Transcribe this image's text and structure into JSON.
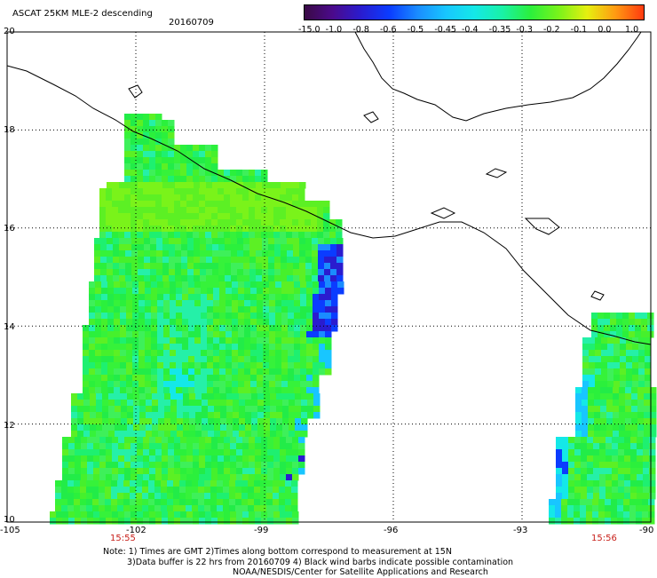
{
  "header": {
    "title": "ASCAT 25KM MLE-2 descending",
    "date": "20160709"
  },
  "colorbar": {
    "labels": [
      "-15.0",
      "-1.0",
      "-0.8",
      "-0.6",
      "-0.5",
      "-0.45",
      "-0.4",
      "-0.35",
      "-0.3",
      "-0.2",
      "-0.1",
      "0.0",
      "1.0"
    ],
    "colors": [
      "#3a0a45",
      "#4b0a8c",
      "#2a1ccf",
      "#0b3cff",
      "#1a8cff",
      "#18c6ff",
      "#14e8e8",
      "#19f2a6",
      "#2bf03c",
      "#7af31a",
      "#e6f010",
      "#ff9a12",
      "#ff3a10"
    ]
  },
  "axes": {
    "lat_labels": [
      "20",
      "18",
      "16",
      "14",
      "12",
      "10"
    ],
    "lon_labels": [
      "-105",
      "-102",
      "-99",
      "-96",
      "-93",
      "-90"
    ],
    "lat_range": [
      10,
      20
    ],
    "lon_range": [
      -105,
      -90
    ]
  },
  "swaths": {
    "left_time": "15:55",
    "right_time": "15:56"
  },
  "notes": {
    "line1": "Note: 1) Times are GMT 2)Times along bottom correspond to measurement at 15N",
    "line2": "3)Data buffer is 22 hrs from 20160709 4) Black wind barbs indicate possible contamination",
    "line3": "NOAA/NESDIS/Center for Satellite Applications and Research"
  }
}
